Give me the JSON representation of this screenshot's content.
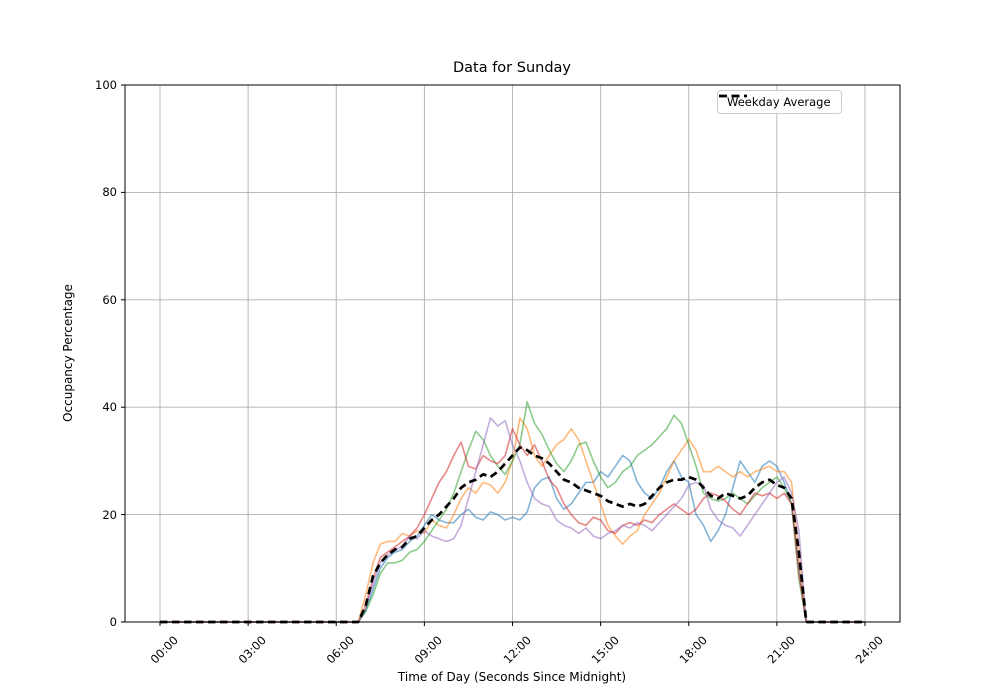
{
  "chart_data": {
    "type": "line",
    "title": "Data for Sunday",
    "xlabel": "Time of Day (Seconds Since Midnight)",
    "ylabel": "Occupancy Percentage",
    "x_range_seconds": [
      0,
      86400
    ],
    "ylim": [
      0,
      100
    ],
    "grid": true,
    "grid_color": "#b0b0b0",
    "legend_position": "upper right",
    "x_tick_seconds": [
      0,
      10800,
      21600,
      32400,
      43200,
      54000,
      64800,
      75600,
      86400
    ],
    "x_tick_labels": [
      "00:00",
      "03:00",
      "06:00",
      "09:00",
      "12:00",
      "15:00",
      "18:00",
      "21:00",
      "24:00"
    ],
    "y_ticks": [
      0,
      20,
      40,
      60,
      80,
      100
    ],
    "x_start_seconds": 0,
    "x_step_seconds": 900,
    "series": [
      {
        "name": "day-series-blue",
        "color": "#1f77b4",
        "alpha": 0.55,
        "values": [
          0,
          0,
          0,
          0,
          0,
          0,
          0,
          0,
          0,
          0,
          0,
          0,
          0,
          0,
          0,
          0,
          0,
          0,
          0,
          0,
          0,
          0,
          0,
          0,
          0,
          0,
          0,
          0,
          2,
          6,
          10,
          12,
          13,
          13.5,
          15,
          16,
          18,
          20,
          19,
          18.5,
          18.5,
          20,
          21,
          19.5,
          19,
          20.5,
          20,
          19,
          19.5,
          19,
          20.5,
          25,
          26.5,
          27,
          23,
          21,
          22,
          24,
          26,
          26,
          28,
          27,
          29,
          31,
          30,
          26,
          24,
          23,
          25,
          28,
          30,
          27,
          26,
          20,
          18,
          15,
          17,
          20,
          25,
          30,
          28,
          26,
          29,
          30,
          29,
          26,
          22,
          10,
          0,
          0,
          0,
          0,
          0,
          0,
          0,
          0,
          0
        ]
      },
      {
        "name": "day-series-orange",
        "color": "#ff7f0e",
        "alpha": 0.55,
        "values": [
          0,
          0,
          0,
          0,
          0,
          0,
          0,
          0,
          0,
          0,
          0,
          0,
          0,
          0,
          0,
          0,
          0,
          0,
          0,
          0,
          0,
          0,
          0,
          0,
          0,
          0,
          0,
          0,
          5,
          11,
          14.5,
          15,
          15,
          16.5,
          16,
          17,
          16.5,
          19,
          18,
          17.5,
          20,
          23,
          25,
          24,
          26,
          25.5,
          24,
          26,
          30,
          38,
          36,
          31,
          29,
          31,
          33,
          34,
          36,
          34,
          30,
          26,
          22,
          18,
          16,
          14.5,
          16,
          17,
          20,
          22,
          24,
          27,
          30,
          32,
          34,
          32,
          28,
          28,
          29,
          28,
          27,
          28,
          27,
          28,
          28.5,
          29,
          28,
          28,
          26,
          13,
          0,
          0,
          0,
          0,
          0,
          0,
          0,
          0,
          0
        ]
      },
      {
        "name": "day-series-green",
        "color": "#2ca02c",
        "alpha": 0.55,
        "values": [
          0,
          0,
          0,
          0,
          0,
          0,
          0,
          0,
          0,
          0,
          0,
          0,
          0,
          0,
          0,
          0,
          0,
          0,
          0,
          0,
          0,
          0,
          0,
          0,
          0,
          0,
          0,
          0,
          2,
          5,
          9,
          11,
          11,
          11.5,
          13,
          13.5,
          15,
          17,
          19,
          21,
          24,
          28,
          32,
          35.5,
          34,
          31,
          29,
          27.5,
          30,
          33,
          41,
          37,
          35,
          32,
          29.5,
          28,
          30,
          33,
          33.5,
          30,
          27,
          25,
          26,
          28,
          29,
          31,
          32,
          33,
          34.5,
          36,
          38.5,
          37,
          33,
          29,
          24,
          23,
          22.5,
          23,
          24,
          23,
          22,
          23.5,
          25,
          26,
          27,
          25,
          22,
          8,
          0,
          0,
          0,
          0,
          0,
          0,
          0,
          0,
          0
        ]
      },
      {
        "name": "day-series-red",
        "color": "#d62728",
        "alpha": 0.55,
        "values": [
          0,
          0,
          0,
          0,
          0,
          0,
          0,
          0,
          0,
          0,
          0,
          0,
          0,
          0,
          0,
          0,
          0,
          0,
          0,
          0,
          0,
          0,
          0,
          0,
          0,
          0,
          0,
          0,
          3,
          8,
          12,
          13,
          14,
          15,
          16,
          17.5,
          20,
          23,
          26,
          28,
          31,
          33.5,
          29,
          28.5,
          31,
          30,
          29.5,
          31,
          36,
          33,
          31,
          33,
          30,
          26.5,
          25,
          22,
          20,
          18.5,
          18,
          19.5,
          19,
          17,
          16.5,
          18,
          18.5,
          18,
          19,
          18.5,
          20,
          21,
          22,
          21,
          20,
          21,
          23,
          24,
          23.5,
          22.5,
          21,
          20,
          22,
          24,
          23.5,
          24,
          23,
          24,
          22,
          9,
          0,
          0,
          0,
          0,
          0,
          0,
          0,
          0,
          0
        ]
      },
      {
        "name": "day-series-purple",
        "color": "#9467bd",
        "alpha": 0.55,
        "values": [
          0,
          0,
          0,
          0,
          0,
          0,
          0,
          0,
          0,
          0,
          0,
          0,
          0,
          0,
          0,
          0,
          0,
          0,
          0,
          0,
          0,
          0,
          0,
          0,
          0,
          0,
          0,
          0,
          2.5,
          7,
          11,
          12.5,
          13.5,
          14,
          16,
          15.5,
          17,
          16,
          15.5,
          15,
          15.5,
          18,
          23,
          28,
          33,
          38,
          36.5,
          37.5,
          33,
          30,
          26,
          23,
          22,
          21.5,
          19,
          18,
          17.5,
          16.5,
          17.5,
          16,
          15.5,
          16.5,
          17,
          18,
          17.5,
          18.5,
          18,
          17,
          18.5,
          20,
          21.5,
          23,
          25.5,
          26,
          25.5,
          21,
          19,
          18,
          17.5,
          16,
          18,
          20,
          22,
          24,
          26,
          27,
          24,
          17,
          0,
          0,
          0,
          0,
          0,
          0,
          0,
          0,
          0
        ]
      }
    ],
    "average_series": {
      "name": "Weekday Average",
      "color": "#000000",
      "style": "dashed",
      "line_width": 2.7,
      "values": [
        0,
        0,
        0,
        0,
        0,
        0,
        0,
        0,
        0,
        0,
        0,
        0,
        0,
        0,
        0,
        0,
        0,
        0,
        0,
        0,
        0,
        0,
        0,
        0,
        0,
        0,
        0,
        0,
        3,
        8.5,
        11,
        12.5,
        13.5,
        14,
        15.5,
        16,
        17.5,
        19,
        20,
        21.5,
        23,
        25,
        26,
        26.5,
        27.5,
        27,
        28,
        29.5,
        31,
        32.5,
        32,
        31,
        30.5,
        29.5,
        28,
        26.5,
        26,
        25,
        24.5,
        24,
        23.5,
        22.5,
        22,
        21.5,
        22,
        21.5,
        22,
        23.5,
        25,
        26,
        26.5,
        26.5,
        27,
        26.5,
        25,
        23.5,
        23,
        24,
        23.5,
        23,
        23.5,
        25,
        26,
        26.5,
        25.5,
        25,
        23,
        13,
        0,
        0,
        0,
        0,
        0,
        0,
        0,
        0,
        0
      ]
    }
  }
}
